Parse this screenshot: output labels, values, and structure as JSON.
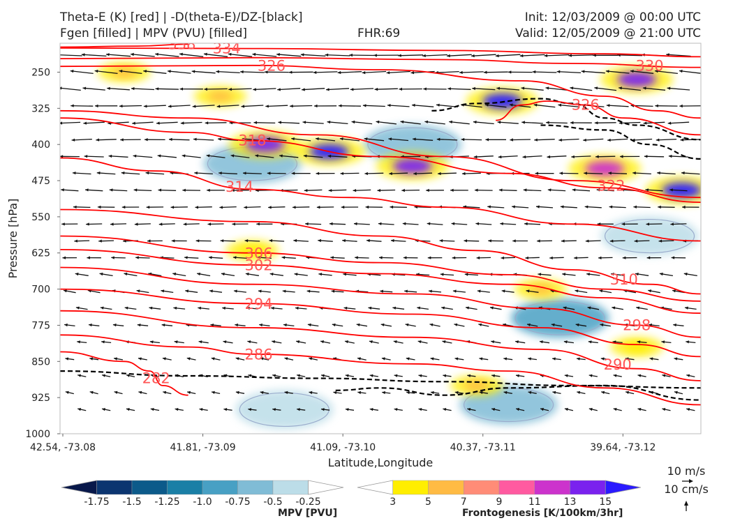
{
  "header": {
    "title_line1": "Theta-E (K) [red] | -D(theta-E)/DZ-[black]",
    "title_line2": "Fgen [filled] | MPV (PVU) [filled]",
    "fhr": "FHR:69",
    "init": "Init: 12/03/2009 @ 00:00 UTC",
    "valid": "Valid: 12/05/2009 @ 21:00 UTC"
  },
  "colors": {
    "theta_e": "#ff0000",
    "theta_e_label": "#ff5555",
    "stability": "#000000",
    "mpv_contour": "#9aaccc",
    "frame": "#bbbbbb"
  },
  "chart_data": {
    "type": "cross-section",
    "xlabel": "Latitude,Longitude",
    "ylabel": "Pressure [hPa]",
    "x_ticks": [
      "42.54, -73.08",
      "41.81, -73.09",
      "41.09, -73.10",
      "40.37, -73.11",
      "39.64, -73.12"
    ],
    "y_ticks": [
      250,
      325,
      400,
      475,
      550,
      625,
      700,
      775,
      850,
      925,
      1000
    ],
    "ylim": [
      1000,
      190
    ],
    "y_inverted": true,
    "theta_e_contours": [
      {
        "value": 334,
        "pts": [
          [
            0,
            200
          ],
          [
            0.3,
            201
          ],
          [
            0.6,
            205
          ],
          [
            0.85,
            212
          ],
          [
            1,
            218
          ]
        ],
        "label_at": 0.26
      },
      {
        "value": 338,
        "pts": [
          [
            0,
            198
          ],
          [
            0.12,
            196
          ],
          [
            0.2,
            192
          ]
        ],
        "label_at": 0.19
      },
      {
        "value": 330,
        "pts": [
          [
            0,
            222
          ],
          [
            0.3,
            220
          ],
          [
            0.6,
            224
          ],
          [
            0.8,
            232
          ],
          [
            1,
            240
          ]
        ],
        "label_at": 0.92
      },
      {
        "value": 326,
        "pts": [
          [
            0,
            238
          ],
          [
            0.3,
            236
          ],
          [
            0.5,
            245
          ],
          [
            0.72,
            268
          ],
          [
            0.85,
            300
          ],
          [
            0.93,
            330
          ],
          [
            1,
            345
          ]
        ],
        "label_at": 0.33
      },
      {
        "value": 326,
        "pts": [
          [
            0.68,
            350
          ],
          [
            0.72,
            318
          ],
          [
            0.76,
            310
          ],
          [
            0.82,
            318
          ],
          [
            0.88,
            345
          ],
          [
            1,
            380
          ]
        ],
        "label_at": 0.82
      },
      {
        "value": 322,
        "pts": [
          [
            0,
            330
          ],
          [
            0.2,
            345
          ],
          [
            0.4,
            380
          ],
          [
            0.6,
            425
          ],
          [
            0.8,
            475
          ],
          [
            1,
            510
          ]
        ],
        "label_at": 0.86
      },
      {
        "value": 318,
        "pts": [
          [
            0,
            345
          ],
          [
            0.2,
            375
          ],
          [
            0.3,
            392
          ],
          [
            0.5,
            425
          ],
          [
            0.7,
            460
          ],
          [
            0.85,
            490
          ],
          [
            1,
            520
          ]
        ],
        "label_at": 0.3
      },
      {
        "value": 314,
        "pts": [
          [
            0,
            428
          ],
          [
            0.15,
            455
          ],
          [
            0.3,
            493
          ],
          [
            0.45,
            510
          ],
          [
            0.6,
            530
          ],
          [
            0.8,
            565
          ],
          [
            1,
            600
          ]
        ],
        "label_at": 0.28
      },
      {
        "value": 310,
        "pts": [
          [
            0,
            535
          ],
          [
            0.3,
            560
          ],
          [
            0.5,
            590
          ],
          [
            0.65,
            620
          ],
          [
            0.8,
            660
          ],
          [
            0.92,
            690
          ],
          [
            1,
            710
          ]
        ],
        "label_at": 0.88
      },
      {
        "value": 306,
        "pts": [
          [
            0,
            590
          ],
          [
            0.3,
            625
          ],
          [
            0.5,
            645
          ],
          [
            0.7,
            670
          ],
          [
            0.85,
            700
          ],
          [
            1,
            725
          ]
        ],
        "label_at": 0.31
      },
      {
        "value": 302,
        "pts": [
          [
            0,
            618
          ],
          [
            0.3,
            650
          ],
          [
            0.5,
            668
          ],
          [
            0.7,
            690
          ],
          [
            0.85,
            718
          ],
          [
            1,
            750
          ]
        ],
        "label_at": 0.31
      },
      {
        "value": 298,
        "pts": [
          [
            0,
            655
          ],
          [
            0.3,
            690
          ],
          [
            0.55,
            710
          ],
          [
            0.75,
            740
          ],
          [
            0.9,
            775
          ],
          [
            1,
            800
          ]
        ],
        "label_at": 0.9
      },
      {
        "value": 294,
        "pts": [
          [
            0,
            700
          ],
          [
            0.3,
            730
          ],
          [
            0.55,
            752
          ],
          [
            0.75,
            780
          ],
          [
            0.9,
            815
          ],
          [
            1,
            840
          ]
        ],
        "label_at": 0.31
      },
      {
        "value": 290,
        "pts": [
          [
            0,
            745
          ],
          [
            0.3,
            780
          ],
          [
            0.55,
            800
          ],
          [
            0.75,
            825
          ],
          [
            0.9,
            865
          ],
          [
            1,
            890
          ]
        ],
        "label_at": 0.87
      },
      {
        "value": 286,
        "pts": [
          [
            0,
            795
          ],
          [
            0.2,
            820
          ],
          [
            0.3,
            835
          ],
          [
            0.55,
            855
          ],
          [
            0.7,
            870
          ],
          [
            0.85,
            905
          ],
          [
            1,
            940
          ]
        ],
        "label_at": 0.31
      },
      {
        "value": 282,
        "pts": [
          [
            0,
            830
          ],
          [
            0.1,
            850
          ],
          [
            0.14,
            870
          ],
          [
            0.16,
            900
          ],
          [
            0.2,
            920
          ]
        ],
        "label_at": 0.15
      }
    ],
    "stability_contours": [
      [
        [
          0,
          870
        ],
        [
          0.2,
          880
        ],
        [
          0.4,
          885
        ],
        [
          0.6,
          892
        ],
        [
          0.8,
          900
        ],
        [
          1,
          905
        ]
      ],
      [
        [
          0.43,
          910
        ],
        [
          0.5,
          905
        ],
        [
          0.6,
          920
        ],
        [
          0.7,
          905
        ],
        [
          0.85,
          900
        ],
        [
          1,
          930
        ]
      ],
      [
        [
          0.58,
          330
        ],
        [
          0.65,
          315
        ],
        [
          0.75,
          305
        ],
        [
          0.8,
          315
        ],
        [
          0.85,
          345
        ],
        [
          0.9,
          360
        ],
        [
          1,
          390
        ]
      ],
      [
        [
          0.75,
          360
        ],
        [
          0.85,
          370
        ],
        [
          0.92,
          400
        ],
        [
          1,
          430
        ]
      ]
    ],
    "fgen_blobs": [
      {
        "x": 0.32,
        "p": 400,
        "value": 13
      },
      {
        "x": 0.42,
        "p": 415,
        "value": 15
      },
      {
        "x": 0.55,
        "p": 445,
        "value": 13
      },
      {
        "x": 0.69,
        "p": 310,
        "value": 15
      },
      {
        "x": 0.9,
        "p": 265,
        "value": 13
      },
      {
        "x": 0.97,
        "p": 495,
        "value": 15
      },
      {
        "x": 0.85,
        "p": 450,
        "value": 11
      },
      {
        "x": 0.1,
        "p": 250,
        "value": 5
      },
      {
        "x": 0.25,
        "p": 300,
        "value": 5
      },
      {
        "x": 0.75,
        "p": 700,
        "value": 5
      },
      {
        "x": 0.9,
        "p": 820,
        "value": 3
      },
      {
        "x": 0.3,
        "p": 620,
        "value": 3
      },
      {
        "x": 0.65,
        "p": 900,
        "value": 5
      }
    ],
    "mpv_blobs": [
      {
        "x": 0.3,
        "p": 440,
        "value": -0.5
      },
      {
        "x": 0.55,
        "p": 400,
        "value": -0.5
      },
      {
        "x": 0.35,
        "p": 950,
        "value": -0.25
      },
      {
        "x": 0.7,
        "p": 940,
        "value": -0.5
      },
      {
        "x": 0.78,
        "p": 760,
        "value": -0.75
      },
      {
        "x": 0.92,
        "p": 590,
        "value": -0.25
      }
    ],
    "mpv_colorbar": {
      "label": "MPV [PVU]",
      "ticks": [
        "-1.75",
        "-1.5",
        "-1.25",
        "-1.0",
        "-0.75",
        "-0.5",
        "-0.25"
      ],
      "colors": [
        "#08184a",
        "#0b3570",
        "#0c5a8a",
        "#1a7fa6",
        "#48a0c4",
        "#80bcd6",
        "#bcdde8",
        "#ffffff"
      ]
    },
    "fgen_colorbar": {
      "label": "Frontogenesis [K/100km/3hr]",
      "ticks": [
        "3",
        "5",
        "7",
        "9",
        "11",
        "13",
        "15"
      ],
      "colors": [
        "#ffffff",
        "#ffee00",
        "#ffbb44",
        "#ff8c77",
        "#ff5aa0",
        "#cc33cc",
        "#7a22ee",
        "#2a1aff"
      ]
    },
    "vector_key": {
      "horizontal": "10 m/s",
      "vertical": "10 cm/s"
    }
  }
}
